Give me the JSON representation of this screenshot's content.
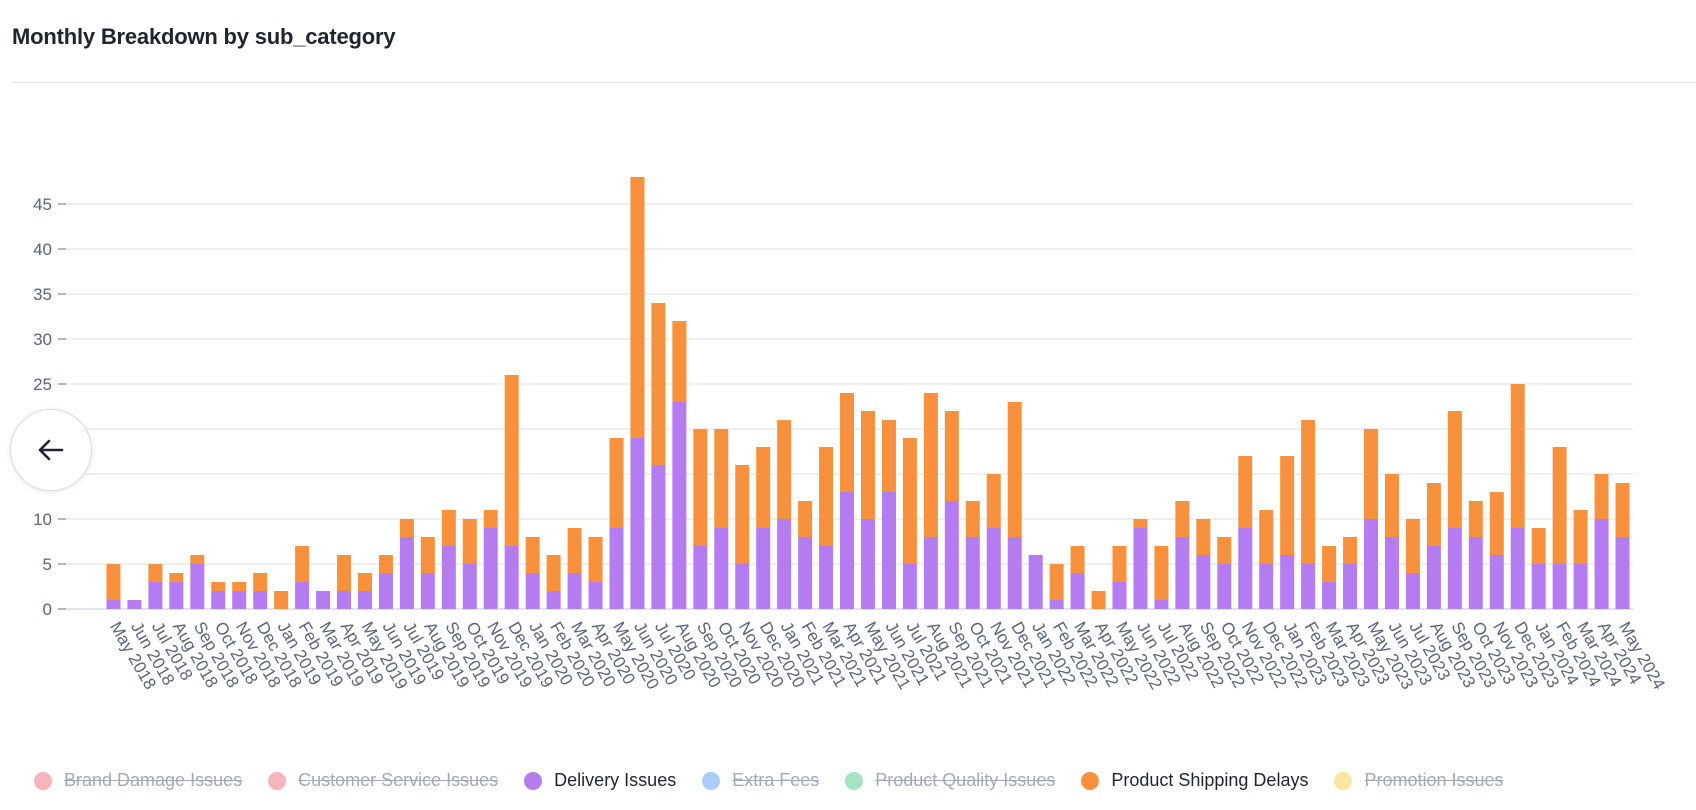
{
  "title": "Monthly Breakdown by sub_category",
  "legend": [
    {
      "label": "Brand Damage Issues",
      "color": "#f7b4bd",
      "active": false
    },
    {
      "label": "Customer Service Issues",
      "color": "#f7b4bd",
      "active": false
    },
    {
      "label": "Delivery Issues",
      "color": "#b57bf0",
      "active": true
    },
    {
      "label": "Extra Fees",
      "color": "#a9cdf7",
      "active": false
    },
    {
      "label": "Product Quality Issues",
      "color": "#a3e3c6",
      "active": false
    },
    {
      "label": "Product Shipping Delays",
      "color": "#f7913d",
      "active": true
    },
    {
      "label": "Promotion Issues",
      "color": "#fbe6a0",
      "active": false
    }
  ],
  "back_button": {
    "icon": "arrow-left-icon"
  },
  "chart_data": {
    "type": "bar",
    "stacked": true,
    "title": "Monthly Breakdown by sub_category",
    "categories": [
      "May 2018",
      "Jun 2018",
      "Jul 2018",
      "Aug 2018",
      "Sep 2018",
      "Oct 2018",
      "Nov 2018",
      "Dec 2018",
      "Jan 2019",
      "Feb 2019",
      "Mar 2019",
      "Apr 2019",
      "May 2019",
      "Jun 2019",
      "Jul 2019",
      "Aug 2019",
      "Sep 2019",
      "Oct 2019",
      "Nov 2019",
      "Dec 2019",
      "Jan 2020",
      "Feb 2020",
      "Mar 2020",
      "Apr 2020",
      "May 2020",
      "Jun 2020",
      "Jul 2020",
      "Aug 2020",
      "Sep 2020",
      "Oct 2020",
      "Nov 2020",
      "Dec 2020",
      "Jan 2021",
      "Feb 2021",
      "Mar 2021",
      "Apr 2021",
      "May 2021",
      "Jun 2021",
      "Jul 2021",
      "Aug 2021",
      "Sep 2021",
      "Oct 2021",
      "Nov 2021",
      "Dec 2021",
      "Jan 2022",
      "Feb 2022",
      "Mar 2022",
      "Apr 2022",
      "May 2022",
      "Jun 2022",
      "Jul 2022",
      "Aug 2022",
      "Sep 2022",
      "Oct 2022",
      "Nov 2022",
      "Dec 2022",
      "Jan 2023",
      "Feb 2023",
      "Mar 2023",
      "Apr 2023",
      "May 2023",
      "Jun 2023",
      "Jul 2023",
      "Aug 2023",
      "Sep 2023",
      "Oct 2023",
      "Nov 2023",
      "Dec 2023",
      "Jan 2024",
      "Feb 2024",
      "Mar 2024",
      "Apr 2024",
      "May 2024"
    ],
    "series": [
      {
        "name": "Delivery Issues",
        "color": "#b57bf0",
        "values": [
          1,
          1,
          3,
          3,
          5,
          2,
          2,
          2,
          0,
          3,
          2,
          2,
          2,
          4,
          8,
          4,
          7,
          5,
          9,
          7,
          4,
          2,
          4,
          3,
          9,
          19,
          16,
          23,
          7,
          9,
          5,
          9,
          10,
          8,
          7,
          13,
          10,
          13,
          5,
          8,
          12,
          8,
          9,
          8,
          6,
          1,
          4,
          0,
          3,
          9,
          1,
          8,
          6,
          5,
          9,
          5,
          6,
          5,
          3,
          5,
          10,
          8,
          4,
          7,
          9,
          8,
          6,
          9,
          5,
          5,
          5,
          10,
          8
        ]
      },
      {
        "name": "Product Shipping Delays",
        "color": "#f7913d",
        "values": [
          4,
          0,
          2,
          1,
          1,
          1,
          1,
          2,
          2,
          4,
          0,
          4,
          2,
          2,
          2,
          4,
          4,
          5,
          2,
          19,
          4,
          4,
          5,
          5,
          10,
          29,
          18,
          9,
          13,
          11,
          11,
          9,
          11,
          4,
          11,
          11,
          12,
          8,
          14,
          16,
          10,
          4,
          6,
          15,
          0,
          4,
          3,
          2,
          4,
          1,
          6,
          4,
          4,
          3,
          8,
          6,
          11,
          16,
          4,
          3,
          10,
          7,
          6,
          7,
          13,
          4,
          7,
          16,
          4,
          13,
          6,
          5,
          6
        ]
      }
    ],
    "y_ticks": [
      0,
      5,
      10,
      15,
      20,
      25,
      30,
      35,
      40,
      45
    ],
    "ylim": [
      0,
      48
    ],
    "grid": true,
    "legend_position": "bottom"
  }
}
